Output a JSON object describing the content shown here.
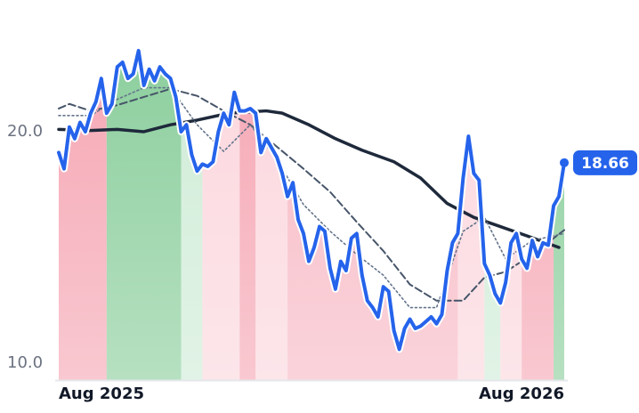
{
  "chart_data": {
    "type": "line",
    "xlim": [
      0,
      95
    ],
    "xticks": [
      {
        "value": 0,
        "label": "Aug 2025"
      },
      {
        "value": 95,
        "label": "Aug 2026"
      }
    ],
    "ylim": [
      9.27,
      25.69
    ],
    "yticks": [
      {
        "value": 10,
        "label": "10.0"
      },
      {
        "value": 20,
        "label": "20.0"
      }
    ],
    "regions": [
      {
        "from": 0,
        "to": 9,
        "color": "#f5a3b1"
      },
      {
        "from": 9,
        "to": 23,
        "color": "#86cc98"
      },
      {
        "from": 23,
        "to": 27,
        "color": "#cdebd5"
      },
      {
        "from": 27,
        "to": 34,
        "color": "#fbd5dc"
      },
      {
        "from": 34,
        "to": 37,
        "color": "#f5a3b1"
      },
      {
        "from": 37,
        "to": 43,
        "color": "#fbd5dc"
      },
      {
        "from": 43,
        "to": 75,
        "color": "#f7b6c2"
      },
      {
        "from": 75,
        "to": 80,
        "color": "#fbd5dc"
      },
      {
        "from": 80,
        "to": 83,
        "color": "#cdebd5"
      },
      {
        "from": 83,
        "to": 87,
        "color": "#fbd5dc"
      },
      {
        "from": 87,
        "to": 93,
        "color": "#f5a3b1"
      },
      {
        "from": 93,
        "to": 95,
        "color": "#86cc98"
      }
    ],
    "series": [
      {
        "color": "#1e293b",
        "width": 3.5,
        "dash": "none",
        "x": [
          0,
          6,
          11,
          16,
          21,
          26,
          32,
          39,
          42,
          47,
          52,
          57,
          63,
          68,
          73,
          78,
          83,
          88,
          94
        ],
        "values": [
          20.1,
          20.05,
          20.1,
          20.0,
          20.3,
          20.5,
          20.8,
          20.9,
          20.8,
          20.3,
          19.7,
          19.2,
          18.7,
          18.0,
          16.9,
          16.3,
          15.9,
          15.5,
          15.0
        ]
      },
      {
        "color": "#475569",
        "width": 2,
        "dash": "8,4",
        "x": [
          0,
          2,
          6,
          11,
          16,
          21,
          26,
          31,
          36,
          41,
          46,
          51,
          56,
          61,
          66,
          71,
          76,
          80,
          84,
          89,
          95
        ],
        "values": [
          21.0,
          21.2,
          20.9,
          21.15,
          21.5,
          21.85,
          21.55,
          20.9,
          20.3,
          19.35,
          18.4,
          17.4,
          16.1,
          14.85,
          13.4,
          12.7,
          12.7,
          13.7,
          13.95,
          14.7,
          15.75
        ]
      },
      {
        "color": "#64748b",
        "width": 1.6,
        "dash": "2,3",
        "x": [
          0,
          6,
          11,
          16,
          21,
          26,
          31,
          36,
          41,
          46,
          51,
          56,
          61,
          66,
          71,
          76,
          80,
          84,
          89,
          95
        ],
        "values": [
          20.7,
          20.7,
          21.4,
          21.9,
          21.9,
          20.3,
          19.15,
          20.3,
          18.8,
          16.85,
          15.7,
          14.7,
          13.8,
          12.4,
          12.4,
          15.7,
          16.3,
          14.5,
          15.3,
          15.6
        ]
      },
      {
        "color": "#2563eb",
        "width": 4,
        "dash": "none",
        "main": true,
        "values": [
          19.1,
          18.4,
          20.2,
          19.7,
          20.4,
          20.0,
          20.8,
          21.3,
          22.3,
          20.8,
          21.2,
          22.8,
          23.0,
          22.3,
          22.5,
          23.5,
          22.0,
          22.7,
          22.2,
          22.8,
          22.5,
          22.3,
          21.5,
          20.0,
          20.3,
          19.0,
          18.3,
          18.6,
          18.5,
          18.7,
          20.0,
          20.8,
          20.3,
          21.7,
          20.9,
          20.9,
          21.0,
          20.8,
          19.1,
          19.7,
          19.3,
          18.9,
          18.2,
          17.2,
          17.8,
          16.2,
          15.6,
          14.4,
          15.0,
          15.9,
          15.7,
          14.1,
          13.2,
          14.4,
          14.0,
          15.4,
          15.6,
          13.8,
          12.7,
          12.4,
          12.0,
          13.3,
          13.1,
          11.4,
          10.6,
          11.5,
          11.9,
          11.5,
          11.6,
          11.8,
          12.0,
          11.7,
          12.1,
          14.0,
          15.2,
          15.6,
          18.0,
          19.8,
          18.2,
          17.9,
          14.3,
          13.8,
          13.0,
          12.6,
          13.5,
          15.2,
          15.6,
          14.5,
          14.1,
          15.3,
          14.6,
          15.2,
          15.1,
          16.8,
          17.2,
          18.66
        ]
      }
    ]
  }
}
